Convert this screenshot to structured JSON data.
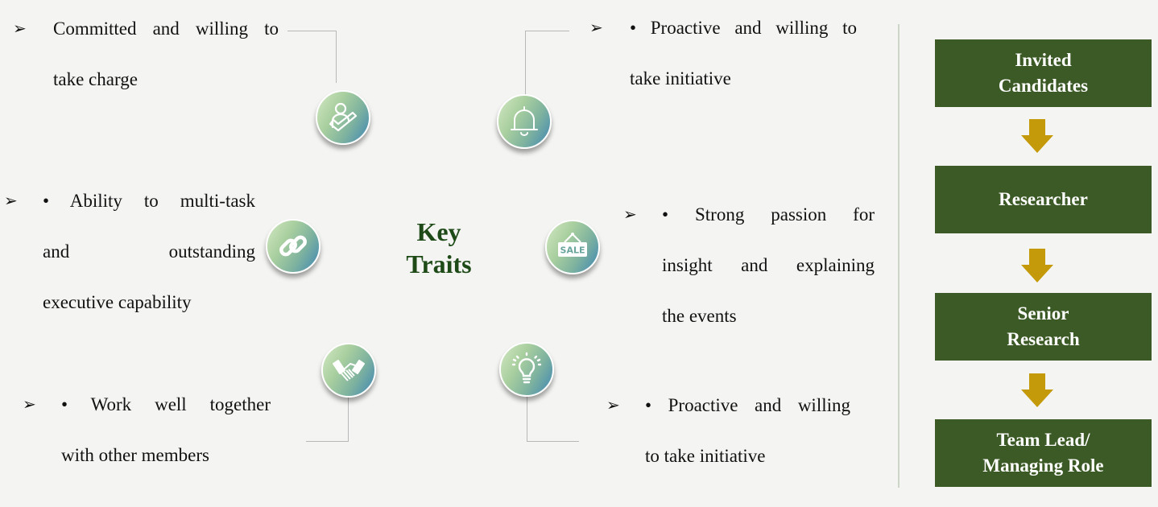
{
  "center": {
    "title": "Key Traits"
  },
  "traits": [
    {
      "bullet": "➢",
      "line1": "Committed and willing to",
      "line2": "take charge",
      "icon": "person-check-icon"
    },
    {
      "bullet": "➢",
      "line1": "• Proactive and willing to",
      "line2": "take initiative",
      "icon": "bell-icon"
    },
    {
      "bullet": "➢",
      "line1": "• Ability to multi-task",
      "line2": "and outstanding",
      "line3": "executive capability",
      "icon": "link-icon"
    },
    {
      "bullet": "➢",
      "line1": "• Strong passion for",
      "line2": "insight and explaining",
      "line3": "the events",
      "icon": "sale-sign-icon",
      "icon_text": "SALE"
    },
    {
      "bullet": "➢",
      "line1": "• Work well together",
      "line2": "with other members",
      "icon": "handshake-icon"
    },
    {
      "bullet": "➢",
      "line1": "• Proactive and willing",
      "line2": "to take initiative",
      "icon": "lightbulb-icon"
    }
  ],
  "career_path": [
    {
      "label": "Invited\nCandidates"
    },
    {
      "label": "Researcher"
    },
    {
      "label": "Senior\nResearch"
    },
    {
      "label": "Team Lead/\nManaging Role"
    }
  ],
  "colors": {
    "box": "#3c5a25",
    "arrow": "#c49a0a",
    "title": "#1e4a18"
  }
}
